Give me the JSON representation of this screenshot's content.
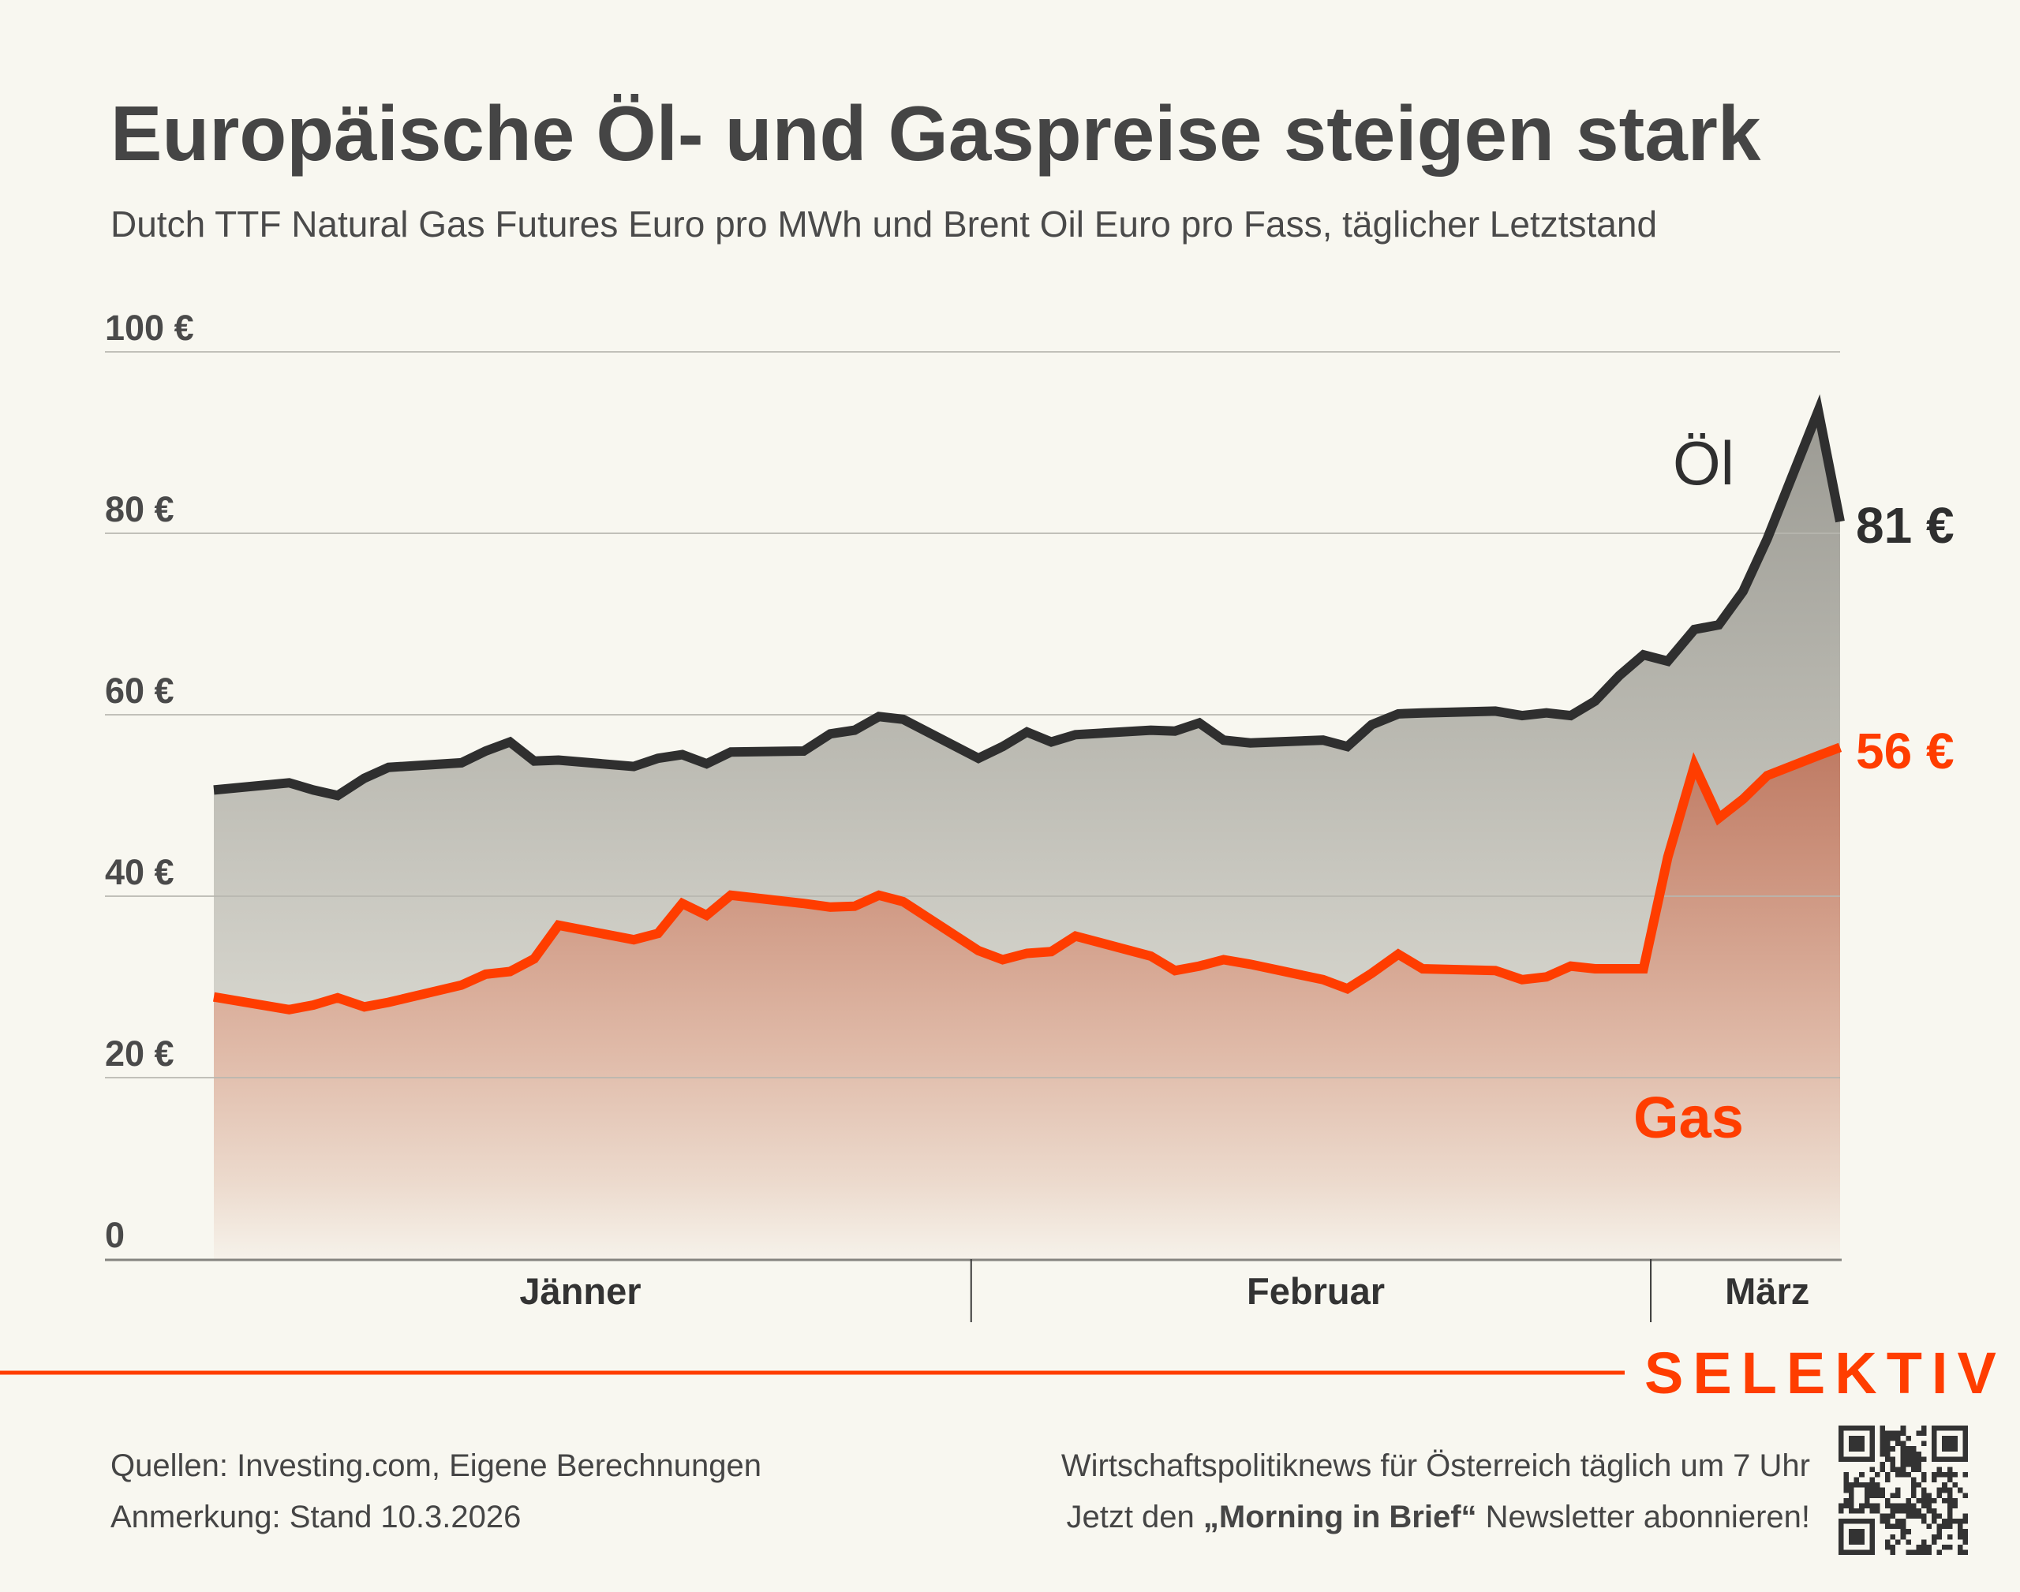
{
  "chart_data": {
    "type": "area",
    "title": "Europäische Öl- und Gaspreise steigen stark",
    "subtitle": "Dutch TTF Natural Gas Futures Euro pro MWh und Brent Oil Euro pro Fass, täglicher Letztstand",
    "xlabel": "",
    "ylabel": "",
    "grid": true,
    "ylim": [
      0,
      100
    ],
    "xlim": [
      0,
      67
    ],
    "y_ticks": [
      {
        "value": 0,
        "label": "0"
      },
      {
        "value": 20,
        "label": "20 €"
      },
      {
        "value": 40,
        "label": "40 €"
      },
      {
        "value": 60,
        "label": "60 €"
      },
      {
        "value": 80,
        "label": "80 €"
      },
      {
        "value": 100,
        "label": "100 €"
      }
    ],
    "x_ticks": [
      {
        "label": "Jänner",
        "x": 15.1
      },
      {
        "label": "Februar",
        "x": 45.4
      },
      {
        "label": "März",
        "x": 64
      }
    ],
    "month_boundaries": [
      31.2,
      59.2
    ],
    "x": [
      0,
      3.1,
      4.1,
      5.1,
      6.2,
      7.2,
      10.2,
      11.2,
      12.2,
      13.2,
      14.2,
      17.3,
      18.3,
      19.3,
      20.3,
      21.3,
      24.3,
      25.4,
      26.4,
      27.4,
      28.4,
      31.5,
      32.5,
      33.5,
      34.5,
      35.5,
      38.6,
      39.6,
      40.6,
      41.6,
      42.7,
      45.7,
      46.7,
      47.7,
      48.8,
      49.8,
      52.8,
      53.9,
      54.9,
      55.9,
      56.9,
      57.9,
      58.9,
      59.9,
      61,
      62,
      63,
      64,
      66.1,
      67
    ],
    "series": [
      {
        "name": "Öl",
        "end_label": "81 €",
        "color": "#2f2f2f",
        "values": [
          51.7,
          52.5,
          51.7,
          51.1,
          53.0,
          54.2,
          54.7,
          56.0,
          57.0,
          54.9,
          55.0,
          54.3,
          55.2,
          55.6,
          54.6,
          55.9,
          56.0,
          57.9,
          58.3,
          59.8,
          59.5,
          55.2,
          56.5,
          58.1,
          57.0,
          57.8,
          58.3,
          58.2,
          59.1,
          57.2,
          56.9,
          57.2,
          56.5,
          58.9,
          60.1,
          60.2,
          60.4,
          59.9,
          60.2,
          59.9,
          61.5,
          64.3,
          66.6,
          65.9,
          69.4,
          69.9,
          73.6,
          79.4,
          93.5,
          81.3
        ]
      },
      {
        "name": "Gas",
        "end_label": "56 €",
        "color": "#ff3d00",
        "values": [
          28.9,
          27.5,
          28.0,
          28.8,
          27.8,
          28.3,
          30.2,
          31.4,
          31.7,
          33.1,
          36.8,
          35.2,
          35.9,
          39.2,
          37.9,
          40.1,
          39.2,
          38.8,
          38.9,
          40.1,
          39.4,
          34.0,
          33.0,
          33.7,
          33.9,
          35.6,
          33.4,
          31.8,
          32.3,
          33.0,
          32.5,
          30.8,
          29.8,
          31.5,
          33.6,
          32.0,
          31.8,
          30.8,
          31.1,
          32.3,
          32.0,
          32.0,
          32.0,
          44.3,
          54.4,
          48.6,
          50.7,
          53.3,
          55.5,
          56.4
        ]
      }
    ]
  },
  "footer": {
    "sources": "Quellen: Investing.com, Eigene Berechnungen",
    "note": "Anmerkung: Stand 10.3.2026",
    "promo_line1": "Wirtschaftspolitiknews für Österreich täglich um 7 Uhr",
    "promo_line2_prefix": "Jetzt den ",
    "promo_line2_bold": "„Morning in Brief“",
    "promo_line2_suffix": " Newsletter abonnieren!",
    "qr_icon": "qr-code"
  },
  "brand": {
    "name": "SELEKTIV",
    "color": "#ff3d00"
  },
  "colors": {
    "background": "#f8f7f0",
    "oil": "#2f2f2f",
    "gas": "#ff3d00",
    "grid": "#b8b7b0"
  }
}
